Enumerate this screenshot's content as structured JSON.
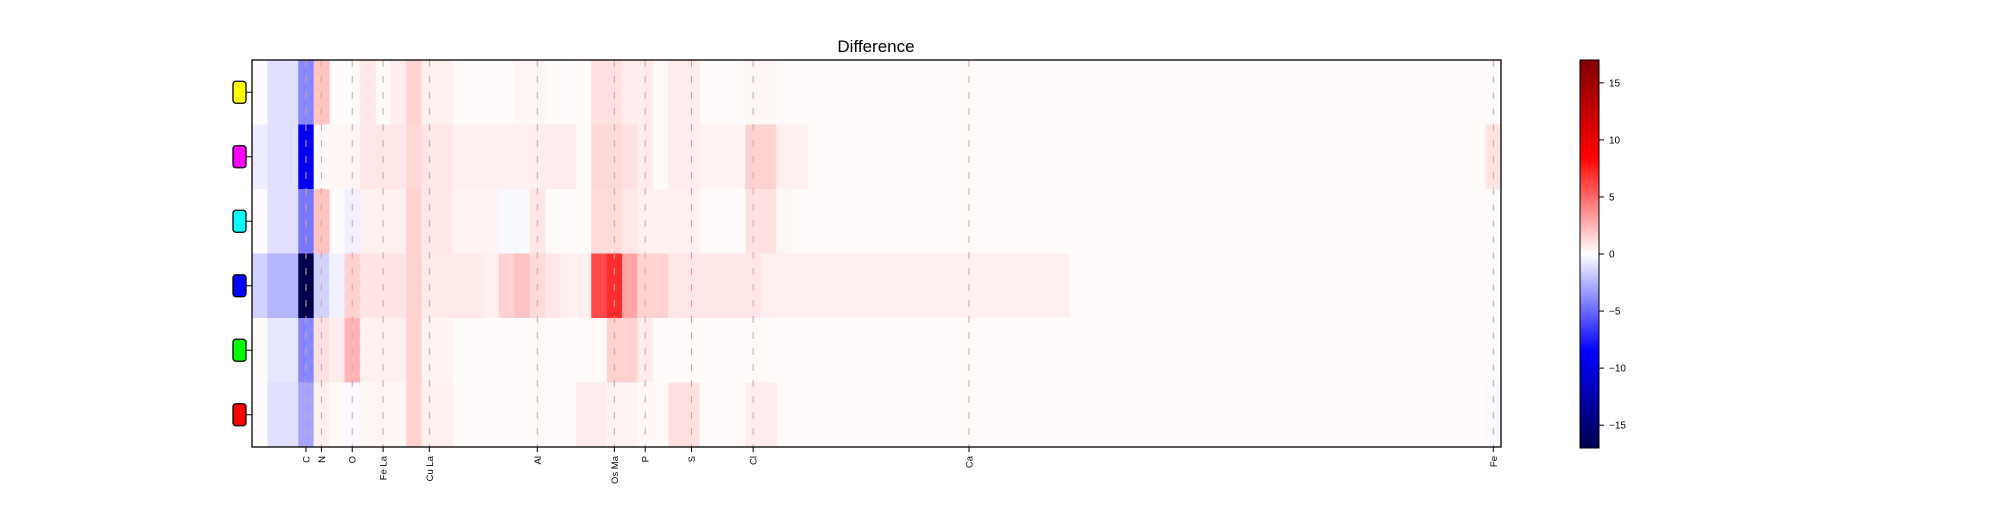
{
  "chart_data": {
    "type": "heatmap",
    "title": "Difference",
    "xlabel": "",
    "ylabel": "",
    "x_tick_labels": [
      "C",
      "N",
      "O",
      "Fe La",
      "Cu La",
      "Al",
      "Os Ma",
      "P",
      "S",
      "Cl",
      "Ca",
      "Fe"
    ],
    "rows": [
      {
        "marker_color": "#ffff00",
        "cells": [
          [
            1,
            3,
            -1
          ],
          [
            3,
            4,
            -4
          ],
          [
            4,
            5,
            2
          ],
          [
            7,
            8,
            0.8
          ],
          [
            9,
            10,
            0.6
          ],
          [
            10,
            11,
            1.5
          ],
          [
            11,
            13,
            0.5
          ],
          [
            17,
            19,
            0.3
          ],
          [
            22,
            23,
            1
          ],
          [
            23,
            24,
            1
          ],
          [
            24,
            26,
            0.6
          ],
          [
            27,
            29,
            0.6
          ],
          [
            32,
            34,
            0.3
          ]
        ]
      },
      {
        "marker_color": "#ff00ff",
        "cells": [
          [
            0,
            1,
            -0.6
          ],
          [
            1,
            3,
            -1
          ],
          [
            3,
            4,
            -9
          ],
          [
            4,
            5,
            0.2
          ],
          [
            5,
            7,
            0.3
          ],
          [
            7,
            10,
            0.8
          ],
          [
            10,
            11,
            1.3
          ],
          [
            11,
            13,
            0.8
          ],
          [
            13,
            18,
            0.5
          ],
          [
            18,
            21,
            0.6
          ],
          [
            22,
            24,
            1.3
          ],
          [
            24,
            25,
            1
          ],
          [
            25,
            26,
            0.6
          ],
          [
            27,
            29,
            0.6
          ],
          [
            29,
            32,
            0.4
          ],
          [
            32,
            34,
            1.5
          ],
          [
            34,
            36,
            0.5
          ],
          [
            80,
            81,
            0.9
          ]
        ]
      },
      {
        "marker_color": "#00ffff",
        "cells": [
          [
            1,
            3,
            -1
          ],
          [
            3,
            4,
            -4.5
          ],
          [
            4,
            5,
            2
          ],
          [
            6,
            7,
            -0.5
          ],
          [
            7,
            10,
            0.5
          ],
          [
            10,
            11,
            1.5
          ],
          [
            11,
            13,
            0.8
          ],
          [
            13,
            16,
            0.4
          ],
          [
            16,
            18,
            -0.2
          ],
          [
            18,
            19,
            0.8
          ],
          [
            22,
            24,
            1.2
          ],
          [
            24,
            25,
            0.8
          ],
          [
            25,
            29,
            0.5
          ],
          [
            32,
            34,
            1
          ],
          [
            34,
            35,
            0.3
          ]
        ]
      },
      {
        "marker_color": "#0000ff",
        "cells": [
          [
            0,
            1,
            -1.5
          ],
          [
            1,
            3,
            -2.5
          ],
          [
            3,
            4,
            -17
          ],
          [
            4,
            5,
            -1.5
          ],
          [
            5,
            6,
            -0.5
          ],
          [
            6,
            7,
            1.5
          ],
          [
            7,
            10,
            0.9
          ],
          [
            10,
            11,
            1.5
          ],
          [
            11,
            15,
            0.7
          ],
          [
            15,
            16,
            0.5
          ],
          [
            16,
            17,
            1.5
          ],
          [
            17,
            18,
            2
          ],
          [
            18,
            19,
            1.2
          ],
          [
            19,
            20,
            0.8
          ],
          [
            20,
            22,
            0.5
          ],
          [
            22,
            23,
            6
          ],
          [
            23,
            24,
            7
          ],
          [
            24,
            25,
            3
          ],
          [
            25,
            27,
            1.5
          ],
          [
            27,
            33,
            0.8
          ],
          [
            33,
            53,
            0.5
          ]
        ]
      },
      {
        "marker_color": "#00ff00",
        "cells": [
          [
            1,
            3,
            -0.8
          ],
          [
            3,
            4,
            -4
          ],
          [
            4,
            5,
            1
          ],
          [
            5,
            6,
            0.6
          ],
          [
            6,
            7,
            2.5
          ],
          [
            7,
            10,
            0.5
          ],
          [
            10,
            11,
            1.5
          ],
          [
            11,
            13,
            0.4
          ],
          [
            23,
            24,
            1.5
          ],
          [
            24,
            25,
            1.5
          ],
          [
            25,
            26,
            0.6
          ],
          [
            33,
            34,
            0.2
          ]
        ]
      },
      {
        "marker_color": "#ff0000",
        "cells": [
          [
            1,
            3,
            -1
          ],
          [
            3,
            4,
            -3
          ],
          [
            4,
            5,
            0.5
          ],
          [
            5,
            6,
            0.2
          ],
          [
            6,
            7,
            -0.2
          ],
          [
            7,
            10,
            0.3
          ],
          [
            10,
            11,
            1.5
          ],
          [
            11,
            13,
            0.5
          ],
          [
            21,
            23,
            0.6
          ],
          [
            23,
            25,
            0.4
          ],
          [
            25,
            27,
            0.2
          ],
          [
            27,
            29,
            1
          ],
          [
            32,
            34,
            0.6
          ],
          [
            80,
            81,
            -0.2
          ]
        ]
      }
    ],
    "background_value": 0.15,
    "colorbar": {
      "colormap": "seismic",
      "vmin": -17,
      "vmax": 17,
      "ticks": [
        -15,
        -10,
        -5,
        0,
        5,
        10,
        15
      ],
      "tick_labels": [
        "−15",
        "−10",
        "−5",
        "0",
        "5",
        "10",
        "15"
      ]
    },
    "grid": false,
    "legend": "none"
  }
}
